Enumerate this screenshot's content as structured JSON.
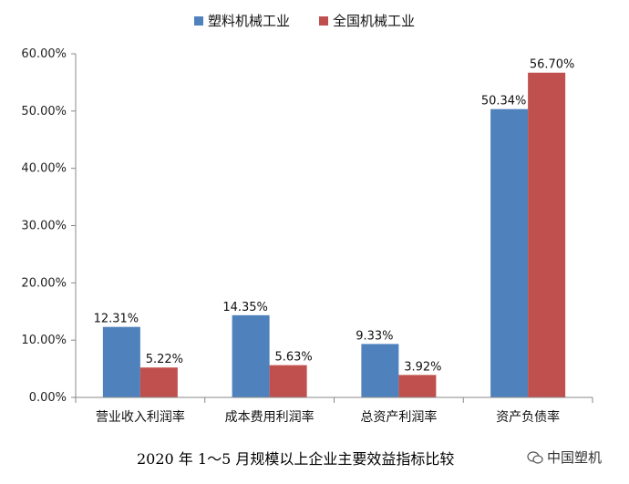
{
  "chart_data": {
    "type": "bar",
    "categories": [
      "营业收入利润率",
      "成本费用利润率",
      "总资产利润率",
      "资产负债率"
    ],
    "series": [
      {
        "name": "塑料机械工业",
        "values": [
          12.31,
          14.35,
          9.33,
          50.34
        ],
        "labels": [
          "12.31%",
          "14.35%",
          "9.33%",
          "50.34%"
        ],
        "color": "#4f81bd"
      },
      {
        "name": "全国机械工业",
        "values": [
          5.22,
          5.63,
          3.92,
          56.7
        ],
        "labels": [
          "5.22%",
          "5.63%",
          "3.92%",
          "56.70%"
        ],
        "color": "#c0504d"
      }
    ],
    "yticks": [
      "0.00%",
      "10.00%",
      "20.00%",
      "30.00%",
      "40.00%",
      "50.00%",
      "60.00%"
    ],
    "ylim": [
      0,
      60
    ],
    "legend": "top",
    "grid": false
  },
  "caption": "2020 年 1～5 月规模以上企业主要效益指标比较",
  "watermark": "中国塑机"
}
